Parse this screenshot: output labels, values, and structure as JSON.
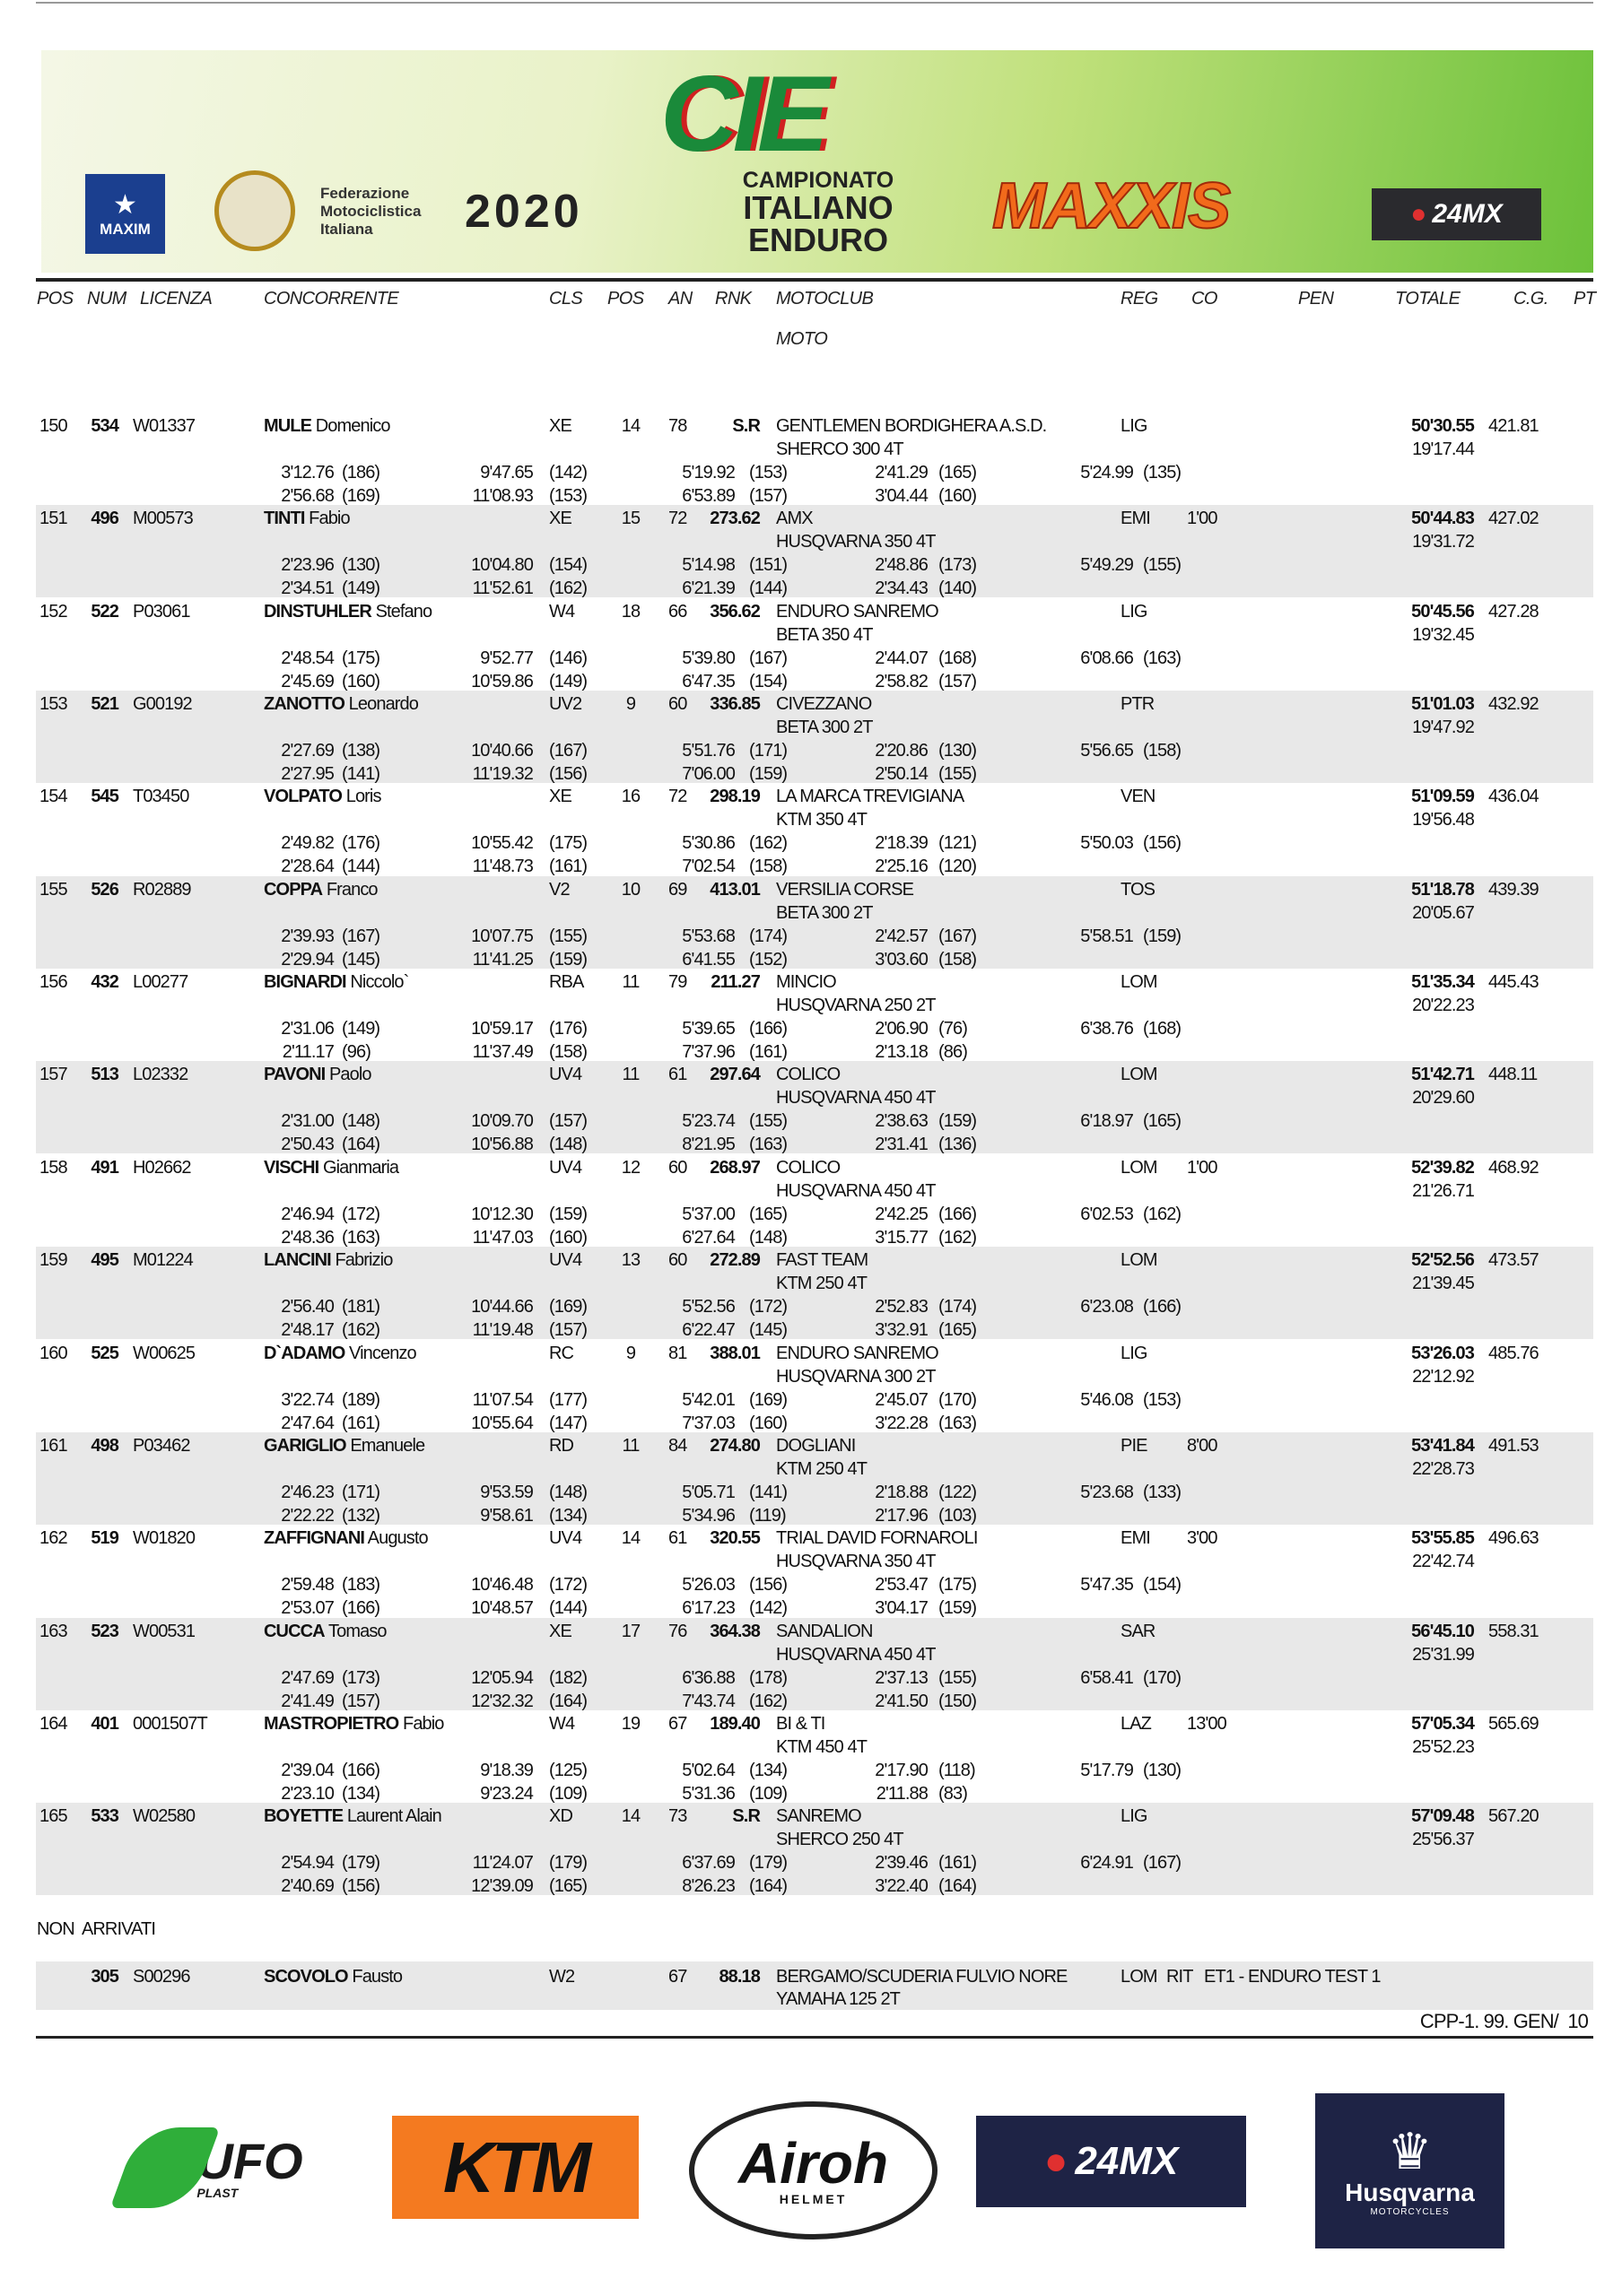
{
  "banner": {
    "maxim": "MAXIM",
    "fmi": "Federazione Motociclistica Italiana",
    "year": "2020",
    "cie": "CIE",
    "championship": [
      "CAMPIONATO",
      "ITALIANO",
      "ENDURO"
    ],
    "maxxis": "MAXXIS",
    "brand_24mx": "24MX"
  },
  "headers": {
    "pos": "POS",
    "num": "NUM",
    "licenza": "LICENZA",
    "concorrente": "CONCORRENTE",
    "cls": "CLS",
    "cpos": "POS",
    "an": "AN",
    "rnk": "RNK",
    "motoclub": "MOTOCLUB",
    "reg": "REG",
    "co": "CO",
    "pen": "PEN",
    "totale": "TOTALE",
    "cg": "C.G.",
    "pt": "PT",
    "moto": "MOTO"
  },
  "entries": [
    {
      "pos": "150",
      "num": "534",
      "lic": "W01337",
      "surname": "MULE",
      "first": "Domenico",
      "cls": "XE",
      "cpos": "14",
      "an": "78",
      "rnk": "S.R",
      "club": "GENTLEMEN BORDIGHERA A.S.D.",
      "reg": "LIG",
      "co": "",
      "totale": "50'30.55",
      "pt": "421.81",
      "moto": "SHERCO 300 4T",
      "cg": "19'17.44",
      "splits": [
        [
          [
            "3'12.76",
            "(186)"
          ],
          [
            "9'47.65",
            "(142)"
          ],
          [
            "5'19.92",
            "(153)"
          ],
          [
            "2'41.29",
            "(165)"
          ],
          [
            "5'24.99",
            "(135)"
          ]
        ],
        [
          [
            "2'56.68",
            "(169)"
          ],
          [
            "11'08.93",
            "(153)"
          ],
          [
            "6'53.89",
            "(157)"
          ],
          [
            "3'04.44",
            "(160)"
          ]
        ]
      ]
    },
    {
      "pos": "151",
      "num": "496",
      "lic": "M00573",
      "surname": "TINTI",
      "first": "Fabio",
      "cls": "XE",
      "cpos": "15",
      "an": "72",
      "rnk": "273.62",
      "club": "AMX",
      "reg": "EMI",
      "co": "1'00",
      "totale": "50'44.83",
      "pt": "427.02",
      "moto": "HUSQVARNA 350 4T",
      "cg": "19'31.72",
      "splits": [
        [
          [
            "2'23.96",
            "(130)"
          ],
          [
            "10'04.80",
            "(154)"
          ],
          [
            "5'14.98",
            "(151)"
          ],
          [
            "2'48.86",
            "(173)"
          ],
          [
            "5'49.29",
            "(155)"
          ]
        ],
        [
          [
            "2'34.51",
            "(149)"
          ],
          [
            "11'52.61",
            "(162)"
          ],
          [
            "6'21.39",
            "(144)"
          ],
          [
            "2'34.43",
            "(140)"
          ]
        ]
      ]
    },
    {
      "pos": "152",
      "num": "522",
      "lic": "P03061",
      "surname": "DINSTUHLER",
      "first": "Stefano",
      "cls": "W4",
      "cpos": "18",
      "an": "66",
      "rnk": "356.62",
      "club": "ENDURO SANREMO",
      "reg": "LIG",
      "co": "",
      "totale": "50'45.56",
      "pt": "427.28",
      "moto": "BETA 350 4T",
      "cg": "19'32.45",
      "splits": [
        [
          [
            "2'48.54",
            "(175)"
          ],
          [
            "9'52.77",
            "(146)"
          ],
          [
            "5'39.80",
            "(167)"
          ],
          [
            "2'44.07",
            "(168)"
          ],
          [
            "6'08.66",
            "(163)"
          ]
        ],
        [
          [
            "2'45.69",
            "(160)"
          ],
          [
            "10'59.86",
            "(149)"
          ],
          [
            "6'47.35",
            "(154)"
          ],
          [
            "2'58.82",
            "(157)"
          ]
        ]
      ]
    },
    {
      "pos": "153",
      "num": "521",
      "lic": "G00192",
      "surname": "ZANOTTO",
      "first": "Leonardo",
      "cls": "UV2",
      "cpos": "9",
      "an": "60",
      "rnk": "336.85",
      "club": "CIVEZZANO",
      "reg": "PTR",
      "co": "",
      "totale": "51'01.03",
      "pt": "432.92",
      "moto": "BETA 300 2T",
      "cg": "19'47.92",
      "splits": [
        [
          [
            "2'27.69",
            "(138)"
          ],
          [
            "10'40.66",
            "(167)"
          ],
          [
            "5'51.76",
            "(171)"
          ],
          [
            "2'20.86",
            "(130)"
          ],
          [
            "5'56.65",
            "(158)"
          ]
        ],
        [
          [
            "2'27.95",
            "(141)"
          ],
          [
            "11'19.32",
            "(156)"
          ],
          [
            "7'06.00",
            "(159)"
          ],
          [
            "2'50.14",
            "(155)"
          ]
        ]
      ]
    },
    {
      "pos": "154",
      "num": "545",
      "lic": "T03450",
      "surname": "VOLPATO",
      "first": "Loris",
      "cls": "XE",
      "cpos": "16",
      "an": "72",
      "rnk": "298.19",
      "club": "LA MARCA TREVIGIANA",
      "reg": "VEN",
      "co": "",
      "totale": "51'09.59",
      "pt": "436.04",
      "moto": "KTM 350 4T",
      "cg": "19'56.48",
      "splits": [
        [
          [
            "2'49.82",
            "(176)"
          ],
          [
            "10'55.42",
            "(175)"
          ],
          [
            "5'30.86",
            "(162)"
          ],
          [
            "2'18.39",
            "(121)"
          ],
          [
            "5'50.03",
            "(156)"
          ]
        ],
        [
          [
            "2'28.64",
            "(144)"
          ],
          [
            "11'48.73",
            "(161)"
          ],
          [
            "7'02.54",
            "(158)"
          ],
          [
            "2'25.16",
            "(120)"
          ]
        ]
      ]
    },
    {
      "pos": "155",
      "num": "526",
      "lic": "R02889",
      "surname": "COPPA",
      "first": "Franco",
      "cls": "V2",
      "cpos": "10",
      "an": "69",
      "rnk": "413.01",
      "club": "VERSILIA CORSE",
      "reg": "TOS",
      "co": "",
      "totale": "51'18.78",
      "pt": "439.39",
      "moto": "BETA 300 2T",
      "cg": "20'05.67",
      "splits": [
        [
          [
            "2'39.93",
            "(167)"
          ],
          [
            "10'07.75",
            "(155)"
          ],
          [
            "5'53.68",
            "(174)"
          ],
          [
            "2'42.57",
            "(167)"
          ],
          [
            "5'58.51",
            "(159)"
          ]
        ],
        [
          [
            "2'29.94",
            "(145)"
          ],
          [
            "11'41.25",
            "(159)"
          ],
          [
            "6'41.55",
            "(152)"
          ],
          [
            "3'03.60",
            "(158)"
          ]
        ]
      ]
    },
    {
      "pos": "156",
      "num": "432",
      "lic": "L00277",
      "surname": "BIGNARDI",
      "first": "Niccolo`",
      "cls": "RBA",
      "cpos": "11",
      "an": "79",
      "rnk": "211.27",
      "club": "MINCIO",
      "reg": "LOM",
      "co": "",
      "totale": "51'35.34",
      "pt": "445.43",
      "moto": "HUSQVARNA 250 2T",
      "cg": "20'22.23",
      "splits": [
        [
          [
            "2'31.06",
            "(149)"
          ],
          [
            "10'59.17",
            "(176)"
          ],
          [
            "5'39.65",
            "(166)"
          ],
          [
            "2'06.90",
            "(76)"
          ],
          [
            "6'38.76",
            "(168)"
          ]
        ],
        [
          [
            "2'11.17",
            "(96)"
          ],
          [
            "11'37.49",
            "(158)"
          ],
          [
            "7'37.96",
            "(161)"
          ],
          [
            "2'13.18",
            "(86)"
          ]
        ]
      ]
    },
    {
      "pos": "157",
      "num": "513",
      "lic": "L02332",
      "surname": "PAVONI",
      "first": "Paolo",
      "cls": "UV4",
      "cpos": "11",
      "an": "61",
      "rnk": "297.64",
      "club": "COLICO",
      "reg": "LOM",
      "co": "",
      "totale": "51'42.71",
      "pt": "448.11",
      "moto": "HUSQVARNA 450 4T",
      "cg": "20'29.60",
      "splits": [
        [
          [
            "2'31.00",
            "(148)"
          ],
          [
            "10'09.70",
            "(157)"
          ],
          [
            "5'23.74",
            "(155)"
          ],
          [
            "2'38.63",
            "(159)"
          ],
          [
            "6'18.97",
            "(165)"
          ]
        ],
        [
          [
            "2'50.43",
            "(164)"
          ],
          [
            "10'56.88",
            "(148)"
          ],
          [
            "8'21.95",
            "(163)"
          ],
          [
            "2'31.41",
            "(136)"
          ]
        ]
      ]
    },
    {
      "pos": "158",
      "num": "491",
      "lic": "H02662",
      "surname": "VISCHI",
      "first": "Gianmaria",
      "cls": "UV4",
      "cpos": "12",
      "an": "60",
      "rnk": "268.97",
      "club": "COLICO",
      "reg": "LOM",
      "co": "1'00",
      "totale": "52'39.82",
      "pt": "468.92",
      "moto": "HUSQVARNA 450 4T",
      "cg": "21'26.71",
      "splits": [
        [
          [
            "2'46.94",
            "(172)"
          ],
          [
            "10'12.30",
            "(159)"
          ],
          [
            "5'37.00",
            "(165)"
          ],
          [
            "2'42.25",
            "(166)"
          ],
          [
            "6'02.53",
            "(162)"
          ]
        ],
        [
          [
            "2'48.36",
            "(163)"
          ],
          [
            "11'47.03",
            "(160)"
          ],
          [
            "6'27.64",
            "(148)"
          ],
          [
            "3'15.77",
            "(162)"
          ]
        ]
      ]
    },
    {
      "pos": "159",
      "num": "495",
      "lic": "M01224",
      "surname": "LANCINI",
      "first": "Fabrizio",
      "cls": "UV4",
      "cpos": "13",
      "an": "60",
      "rnk": "272.89",
      "club": "FAST TEAM",
      "reg": "LOM",
      "co": "",
      "totale": "52'52.56",
      "pt": "473.57",
      "moto": "KTM 250 4T",
      "cg": "21'39.45",
      "splits": [
        [
          [
            "2'56.40",
            "(181)"
          ],
          [
            "10'44.66",
            "(169)"
          ],
          [
            "5'52.56",
            "(172)"
          ],
          [
            "2'52.83",
            "(174)"
          ],
          [
            "6'23.08",
            "(166)"
          ]
        ],
        [
          [
            "2'48.17",
            "(162)"
          ],
          [
            "11'19.48",
            "(157)"
          ],
          [
            "6'22.47",
            "(145)"
          ],
          [
            "3'32.91",
            "(165)"
          ]
        ]
      ]
    },
    {
      "pos": "160",
      "num": "525",
      "lic": "W00625",
      "surname": "D`ADAMO",
      "first": "Vincenzo",
      "cls": "RC",
      "cpos": "9",
      "an": "81",
      "rnk": "388.01",
      "club": "ENDURO SANREMO",
      "reg": "LIG",
      "co": "",
      "totale": "53'26.03",
      "pt": "485.76",
      "moto": "HUSQVARNA 300 2T",
      "cg": "22'12.92",
      "splits": [
        [
          [
            "3'22.74",
            "(189)"
          ],
          [
            "11'07.54",
            "(177)"
          ],
          [
            "5'42.01",
            "(169)"
          ],
          [
            "2'45.07",
            "(170)"
          ],
          [
            "5'46.08",
            "(153)"
          ]
        ],
        [
          [
            "2'47.64",
            "(161)"
          ],
          [
            "10'55.64",
            "(147)"
          ],
          [
            "7'37.03",
            "(160)"
          ],
          [
            "3'22.28",
            "(163)"
          ]
        ]
      ]
    },
    {
      "pos": "161",
      "num": "498",
      "lic": "P03462",
      "surname": "GARIGLIO",
      "first": "Emanuele",
      "cls": "RD",
      "cpos": "11",
      "an": "84",
      "rnk": "274.80",
      "club": "DOGLIANI",
      "reg": "PIE",
      "co": "8'00",
      "totale": "53'41.84",
      "pt": "491.53",
      "moto": "KTM 250 4T",
      "cg": "22'28.73",
      "splits": [
        [
          [
            "2'46.23",
            "(171)"
          ],
          [
            "9'53.59",
            "(148)"
          ],
          [
            "5'05.71",
            "(141)"
          ],
          [
            "2'18.88",
            "(122)"
          ],
          [
            "5'23.68",
            "(133)"
          ]
        ],
        [
          [
            "2'22.22",
            "(132)"
          ],
          [
            "9'58.61",
            "(134)"
          ],
          [
            "5'34.96",
            "(119)"
          ],
          [
            "2'17.96",
            "(103)"
          ]
        ]
      ]
    },
    {
      "pos": "162",
      "num": "519",
      "lic": "W01820",
      "surname": "ZAFFIGNANI",
      "first": "Augusto",
      "cls": "UV4",
      "cpos": "14",
      "an": "61",
      "rnk": "320.55",
      "club": "TRIAL DAVID FORNAROLI",
      "reg": "EMI",
      "co": "3'00",
      "totale": "53'55.85",
      "pt": "496.63",
      "moto": "HUSQVARNA 350 4T",
      "cg": "22'42.74",
      "splits": [
        [
          [
            "2'59.48",
            "(183)"
          ],
          [
            "10'46.48",
            "(172)"
          ],
          [
            "5'26.03",
            "(156)"
          ],
          [
            "2'53.47",
            "(175)"
          ],
          [
            "5'47.35",
            "(154)"
          ]
        ],
        [
          [
            "2'53.07",
            "(166)"
          ],
          [
            "10'48.57",
            "(144)"
          ],
          [
            "6'17.23",
            "(142)"
          ],
          [
            "3'04.17",
            "(159)"
          ]
        ]
      ]
    },
    {
      "pos": "163",
      "num": "523",
      "lic": "W00531",
      "surname": "CUCCA",
      "first": "Tomaso",
      "cls": "XE",
      "cpos": "17",
      "an": "76",
      "rnk": "364.38",
      "club": "SANDALION",
      "reg": "SAR",
      "co": "",
      "totale": "56'45.10",
      "pt": "558.31",
      "moto": "HUSQVARNA 450 4T",
      "cg": "25'31.99",
      "splits": [
        [
          [
            "2'47.69",
            "(173)"
          ],
          [
            "12'05.94",
            "(182)"
          ],
          [
            "6'36.88",
            "(178)"
          ],
          [
            "2'37.13",
            "(155)"
          ],
          [
            "6'58.41",
            "(170)"
          ]
        ],
        [
          [
            "2'41.49",
            "(157)"
          ],
          [
            "12'32.32",
            "(164)"
          ],
          [
            "7'43.74",
            "(162)"
          ],
          [
            "2'41.50",
            "(150)"
          ]
        ]
      ]
    },
    {
      "pos": "164",
      "num": "401",
      "lic": "0001507T",
      "surname": "MASTROPIETRO",
      "first": "Fabio",
      "cls": "W4",
      "cpos": "19",
      "an": "67",
      "rnk": "189.40",
      "club": "BI & TI",
      "reg": "LAZ",
      "co": "13'00",
      "totale": "57'05.34",
      "pt": "565.69",
      "moto": "KTM 450 4T",
      "cg": "25'52.23",
      "splits": [
        [
          [
            "2'39.04",
            "(166)"
          ],
          [
            "9'18.39",
            "(125)"
          ],
          [
            "5'02.64",
            "(134)"
          ],
          [
            "2'17.90",
            "(118)"
          ],
          [
            "5'17.79",
            "(130)"
          ]
        ],
        [
          [
            "2'23.10",
            "(134)"
          ],
          [
            "9'23.24",
            "(109)"
          ],
          [
            "5'31.36",
            "(109)"
          ],
          [
            "2'11.88",
            "(83)"
          ]
        ]
      ]
    },
    {
      "pos": "165",
      "num": "533",
      "lic": "W02580",
      "surname": "BOYETTE",
      "first": "Laurent Alain",
      "cls": "XD",
      "cpos": "14",
      "an": "73",
      "rnk": "S.R",
      "club": "SANREMO",
      "reg": "LIG",
      "co": "",
      "totale": "57'09.48",
      "pt": "567.20",
      "moto": "SHERCO 250 4T",
      "cg": "25'56.37",
      "splits": [
        [
          [
            "2'54.94",
            "(179)"
          ],
          [
            "11'24.07",
            "(179)"
          ],
          [
            "6'37.69",
            "(179)"
          ],
          [
            "2'39.46",
            "(161)"
          ],
          [
            "6'24.91",
            "(167)"
          ]
        ],
        [
          [
            "2'40.69",
            "(156)"
          ],
          [
            "12'39.09",
            "(165)"
          ],
          [
            "8'26.23",
            "(164)"
          ],
          [
            "3'22.40",
            "(164)"
          ]
        ]
      ]
    }
  ],
  "non_arrivati": {
    "label": "NON  ARRIVATI",
    "rows": [
      {
        "num": "305",
        "lic": "S00296",
        "surname": "SCOVOLO",
        "first": "Fausto",
        "cls": "W2",
        "an": "67",
        "rnk": "88.18",
        "club": "BERGAMO/SCUDERIA FULVIO NORE",
        "reg": "LOM",
        "status": "RIT",
        "reason": "ET1 - ENDURO TEST 1",
        "moto": "YAMAHA 125 2T"
      }
    ]
  },
  "footer": {
    "code": "CPP-1. 99. GEN/  10"
  },
  "sponsors": {
    "ufo": "UFO",
    "ufo_sub": "PLAST",
    "ktm": "KTM",
    "airoh": "Airoh",
    "airoh_sub": "HELMET",
    "brand_24mx": "24MX",
    "husqvarna": "Husqvarna",
    "husqvarna_sub": "MOTORCYCLES"
  },
  "colors": {
    "row_shade": "#e8e8e8",
    "maxxis": "#f26a1b",
    "ktm": "#f47a20",
    "navy": "#1e2345",
    "ufo_green": "#2fae3a"
  }
}
